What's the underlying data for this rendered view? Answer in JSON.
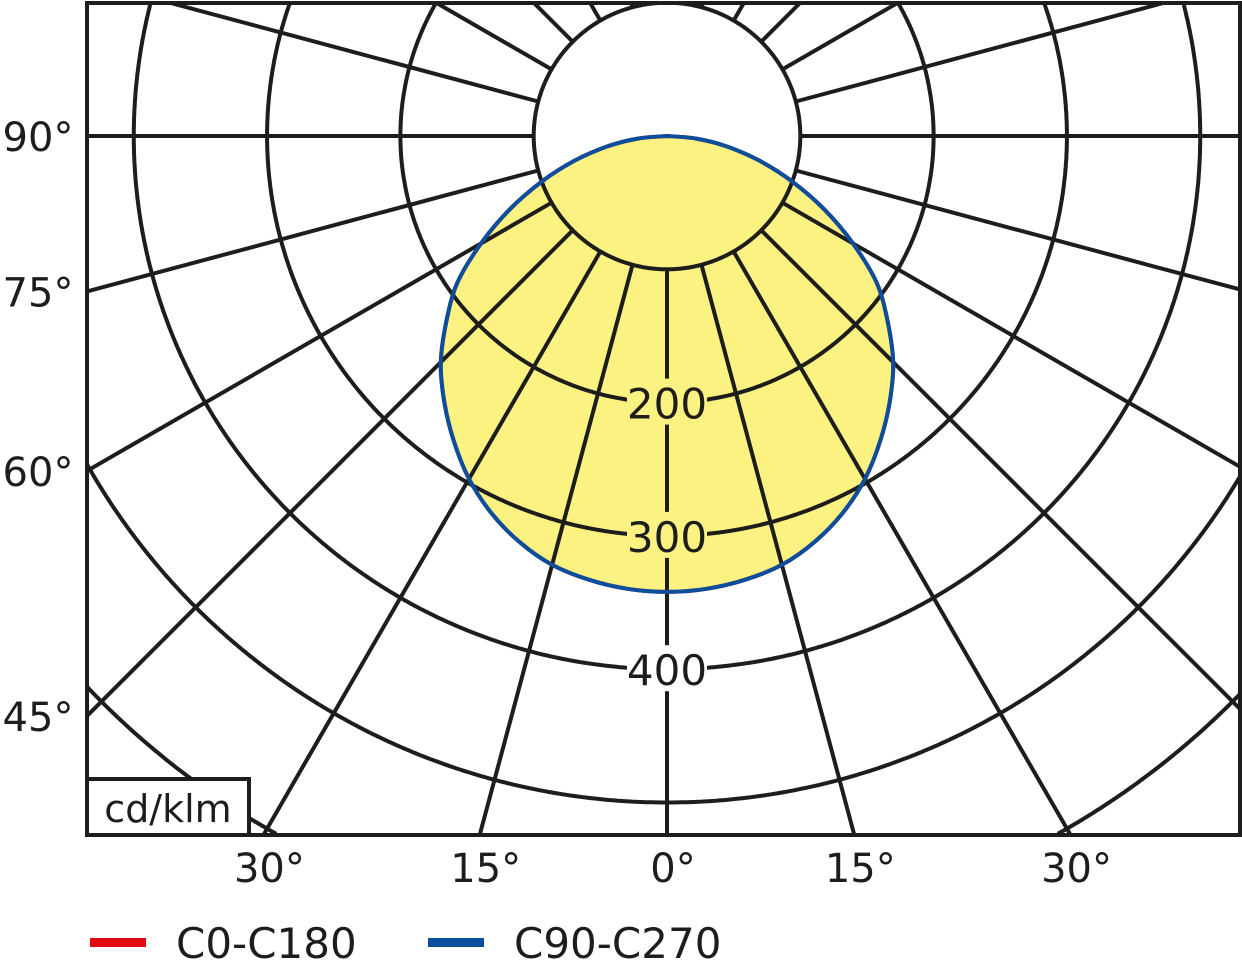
{
  "chart_data": {
    "type": "polar",
    "unit_label": "cd/klm",
    "radial_range": [
      0,
      600
    ],
    "radial_grid_step": 100,
    "radial_tick_labels": [
      "200",
      "300",
      "400"
    ],
    "radial_tick_values": [
      200,
      300,
      400
    ],
    "angle_grid_step_deg": 15,
    "left_angle_labels": [
      {
        "angle": 90,
        "text": "90°"
      },
      {
        "angle": 75,
        "text": "75°"
      },
      {
        "angle": 60,
        "text": "60°"
      },
      {
        "angle": 45,
        "text": "45°"
      }
    ],
    "bottom_angle_labels": [
      {
        "angle": -30,
        "text": "30°"
      },
      {
        "angle": -15,
        "text": "15°"
      },
      {
        "angle": 0,
        "text": "0°"
      },
      {
        "angle": 15,
        "text": "15°"
      },
      {
        "angle": 30,
        "text": "30°"
      }
    ],
    "angles_deg": [
      0,
      5,
      10,
      15,
      20,
      25,
      30,
      35,
      40,
      45,
      50,
      55,
      60,
      65,
      70,
      75,
      80,
      85,
      90
    ],
    "series": [
      {
        "name": "C0-C180",
        "color": "#e30613",
        "values": [
          342,
          341,
          338,
          333,
          324,
          312,
          297,
          279,
          260,
          240,
          216,
          192,
          161,
          130,
          100,
          72,
          46,
          22,
          0
        ]
      },
      {
        "name": "C90-C270",
        "color": "#0a4f9e",
        "values": [
          342,
          341,
          338,
          333,
          324,
          312,
          297,
          279,
          260,
          240,
          216,
          192,
          161,
          130,
          100,
          72,
          46,
          22,
          0
        ]
      }
    ],
    "fill_color": "#fcf282",
    "grid": true,
    "legend_position": "bottom-left"
  }
}
